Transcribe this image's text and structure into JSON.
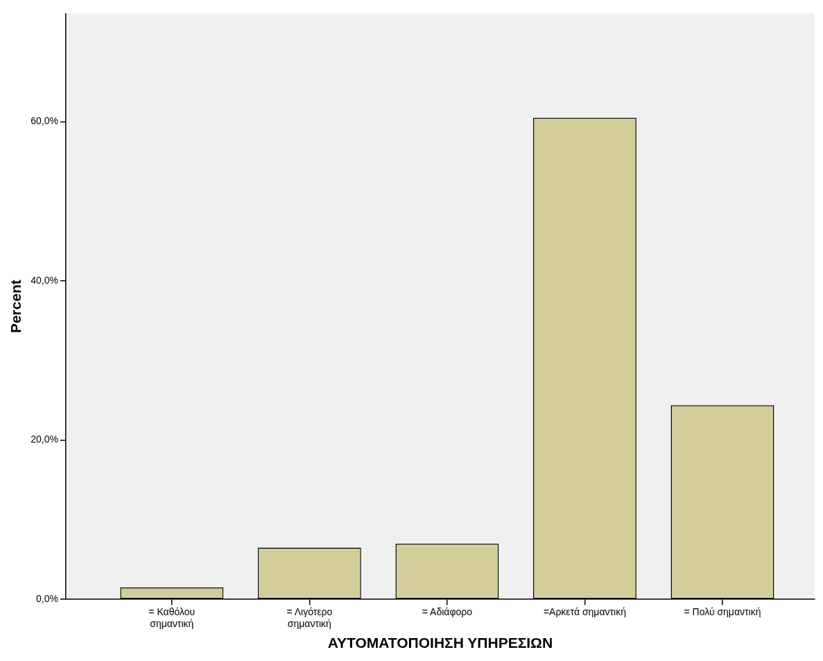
{
  "chart_data": {
    "type": "bar",
    "xlabel": "ΑΥΤΟΜΑΤΟΠΟΙΗΣΗ ΥΠΗΡΕΣΙΩΝ",
    "ylabel": "Percent",
    "categories": [
      "= Καθόλου σημαντική",
      "= Λιγότερο σημαντική",
      "= Αδιάφορο",
      "=Αρκετά σημαντική",
      "= Πολύ σημαντική"
    ],
    "values": [
      1.5,
      6.5,
      7.0,
      60.5,
      24.4
    ],
    "color": "#d3ce99",
    "ylim": [
      0,
      73.6
    ],
    "yticks": [
      {
        "value": 0,
        "label": "0,0%"
      },
      {
        "value": 20,
        "label": "20,0%"
      },
      {
        "value": 40,
        "label": "40,0%"
      },
      {
        "value": 60,
        "label": "60,0%"
      }
    ],
    "grid": false,
    "legend": false
  }
}
